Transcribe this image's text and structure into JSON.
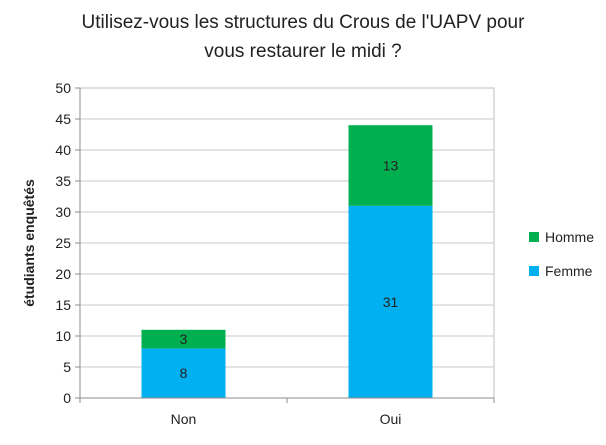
{
  "chart_data": {
    "type": "bar",
    "stacked": true,
    "title": "Utilisez-vous les structures du Crous de l'UAPV pour\nvous restaurer le midi ?",
    "xlabel": "",
    "ylabel": "étudiants enquêtés",
    "categories": [
      "Non",
      "Oui"
    ],
    "ylim": [
      0,
      50
    ],
    "yticks": [
      0,
      5,
      10,
      15,
      20,
      25,
      30,
      35,
      40,
      45,
      50
    ],
    "grid": true,
    "legend_position": "right",
    "series": [
      {
        "name": "Femme",
        "color": "#00b0f0",
        "values": [
          8,
          31
        ]
      },
      {
        "name": "Homme",
        "color": "#00b050",
        "values": [
          3,
          13
        ]
      }
    ],
    "data_labels": true
  }
}
